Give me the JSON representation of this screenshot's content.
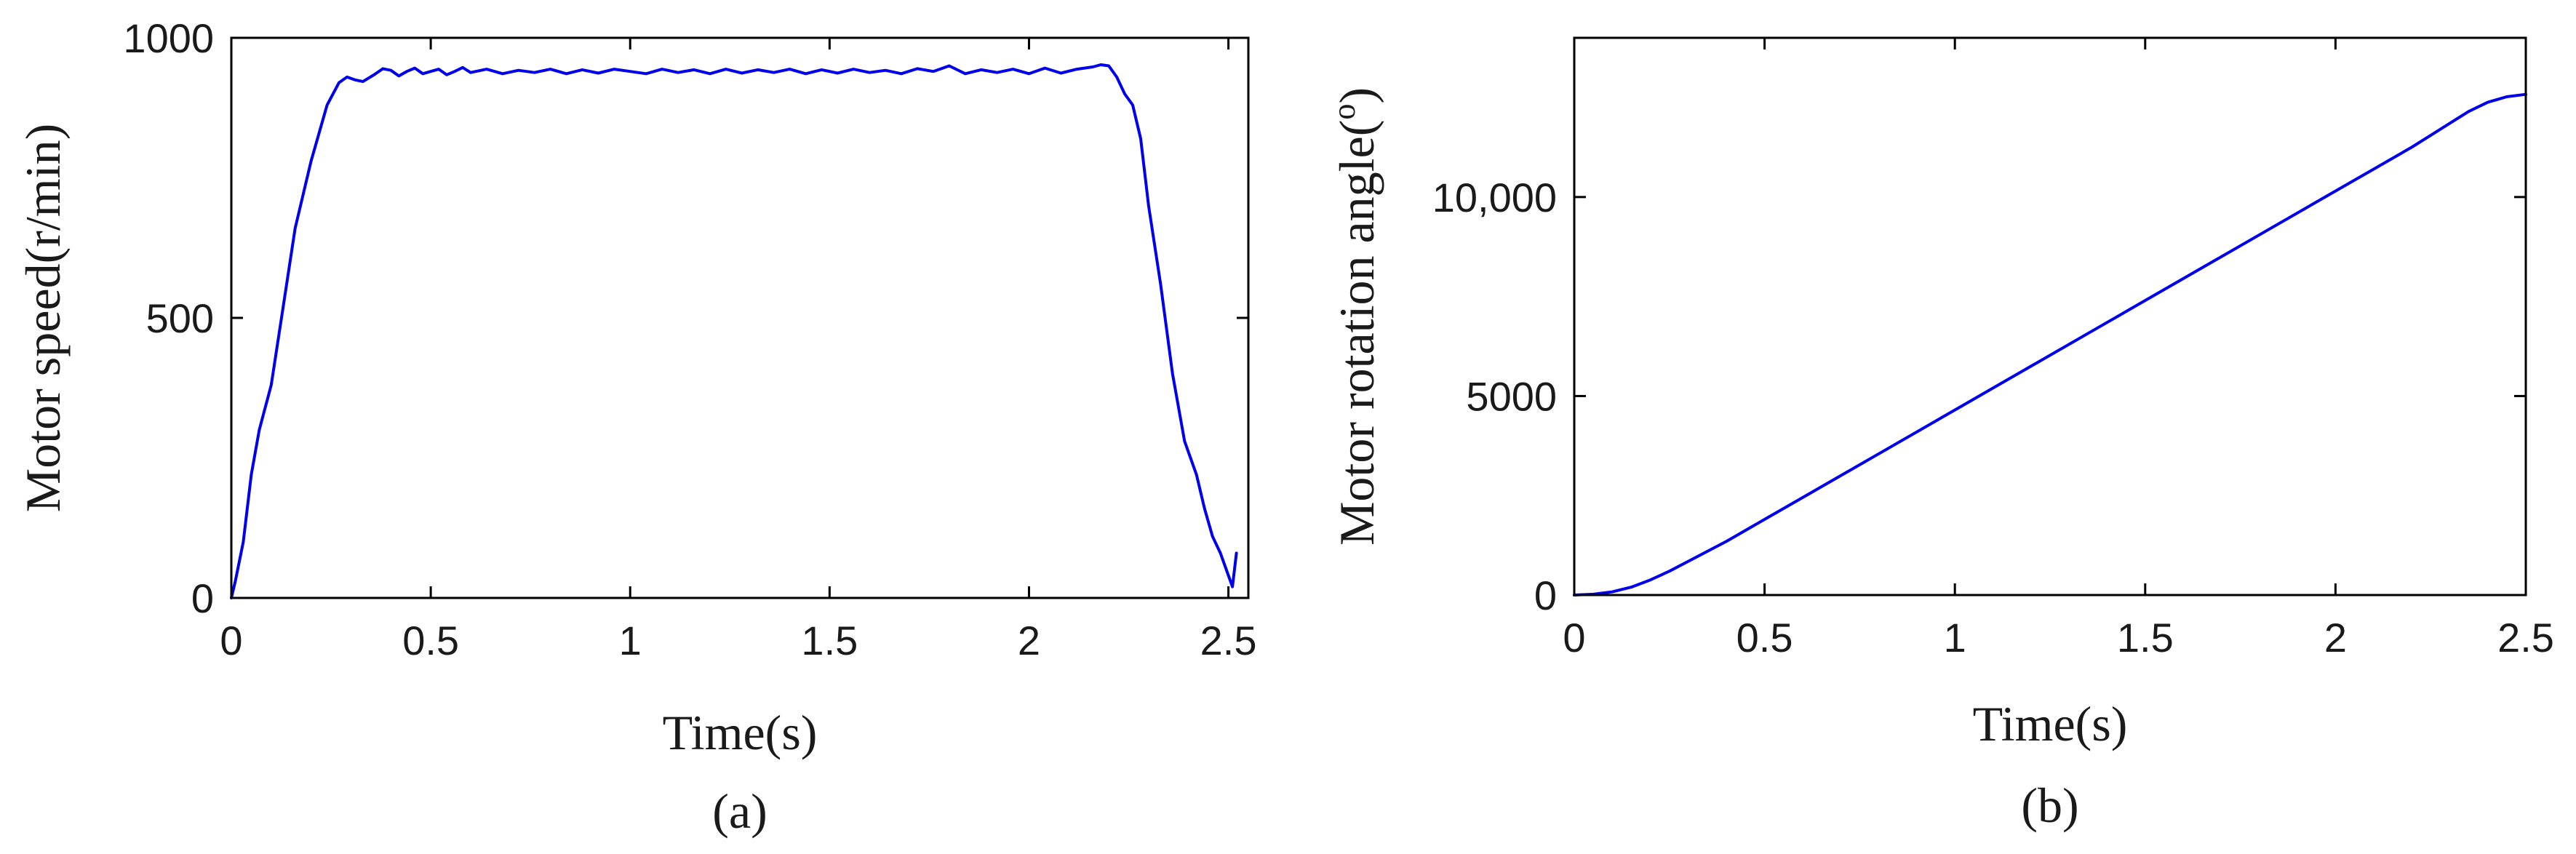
{
  "chart_data": [
    {
      "type": "line",
      "caption": "(a)",
      "xlabel": "Time(s)",
      "ylabel": "Motor speed(r/min)",
      "xlim": [
        0,
        2.55
      ],
      "ylim": [
        0,
        1000
      ],
      "xticks": [
        0,
        0.5,
        1,
        1.5,
        2,
        2.5
      ],
      "xtick_labels": [
        "0",
        "0.5",
        "1",
        "1.5",
        "2",
        "2.5"
      ],
      "yticks": [
        0,
        500,
        1000
      ],
      "ytick_labels": [
        "0",
        "500",
        "1000"
      ],
      "grid": false,
      "line_color": "#0000ee",
      "series": [
        {
          "x": [
            0,
            0.01,
            0.03,
            0.05,
            0.07,
            0.1,
            0.13,
            0.16,
            0.2,
            0.24,
            0.27,
            0.29,
            0.31,
            0.33,
            0.36,
            0.38,
            0.4,
            0.42,
            0.44,
            0.46,
            0.48,
            0.5,
            0.52,
            0.54,
            0.56,
            0.58,
            0.6,
            0.64,
            0.68,
            0.72,
            0.76,
            0.8,
            0.84,
            0.88,
            0.92,
            0.96,
            1.0,
            1.04,
            1.08,
            1.12,
            1.16,
            1.2,
            1.24,
            1.28,
            1.32,
            1.36,
            1.4,
            1.44,
            1.48,
            1.52,
            1.56,
            1.6,
            1.64,
            1.68,
            1.72,
            1.76,
            1.8,
            1.84,
            1.88,
            1.92,
            1.96,
            2.0,
            2.04,
            2.08,
            2.12,
            2.16,
            2.18,
            2.2,
            2.22,
            2.24,
            2.26,
            2.28,
            2.3,
            2.33,
            2.36,
            2.39,
            2.42,
            2.44,
            2.46,
            2.48,
            2.5,
            2.51,
            2.52
          ],
          "y": [
            0,
            30,
            100,
            220,
            300,
            380,
            520,
            660,
            780,
            880,
            920,
            930,
            925,
            922,
            935,
            945,
            942,
            932,
            940,
            946,
            936,
            940,
            944,
            934,
            940,
            947,
            938,
            944,
            936,
            942,
            938,
            944,
            936,
            943,
            937,
            944,
            940,
            936,
            944,
            938,
            943,
            936,
            944,
            937,
            943,
            938,
            944,
            936,
            943,
            937,
            944,
            938,
            942,
            936,
            945,
            940,
            950,
            936,
            943,
            938,
            944,
            936,
            946,
            937,
            944,
            948,
            952,
            950,
            930,
            900,
            880,
            820,
            700,
            560,
            400,
            280,
            220,
            160,
            110,
            80,
            40,
            20,
            80
          ]
        }
      ]
    },
    {
      "type": "line",
      "caption": "(b)",
      "xlabel": "Time(s)",
      "ylabel": "Motor rotation angle(",
      "ylabel_super": "o",
      "ylabel_end": ")",
      "xlim": [
        0,
        2.5
      ],
      "ylim": [
        0,
        14000
      ],
      "xticks": [
        0,
        0.5,
        1,
        1.5,
        2,
        2.5
      ],
      "xtick_labels": [
        "0",
        "0.5",
        "1",
        "1.5",
        "2",
        "2.5"
      ],
      "yticks": [
        0,
        5000,
        10000
      ],
      "ytick_labels": [
        "0",
        "5000",
        "10,000"
      ],
      "grid": false,
      "line_color": "#0000ee",
      "series": [
        {
          "x": [
            0,
            0.05,
            0.1,
            0.15,
            0.2,
            0.25,
            0.3,
            0.4,
            0.5,
            0.6,
            0.8,
            1.0,
            1.2,
            1.4,
            1.6,
            1.8,
            2.0,
            2.1,
            2.2,
            2.25,
            2.3,
            2.35,
            2.4,
            2.45,
            2.5
          ],
          "y": [
            0,
            20,
            80,
            200,
            380,
            600,
            850,
            1350,
            1900,
            2450,
            3550,
            4650,
            5750,
            6850,
            7950,
            9050,
            10150,
            10700,
            11250,
            11550,
            11850,
            12150,
            12380,
            12520,
            12580
          ]
        }
      ]
    }
  ]
}
